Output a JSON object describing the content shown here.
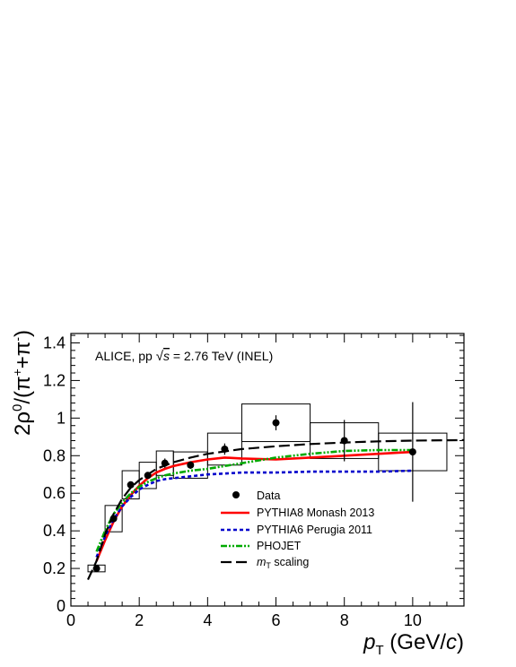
{
  "chart_data": {
    "type": "scatter",
    "annotation": {
      "prefix": "ALICE, pp ",
      "sqrt_s": "s",
      "suffix": " = 2.76 TeV (INEL)"
    },
    "xlabel": {
      "symbol": "p",
      "sub": "T",
      "unit_open": " (GeV/",
      "unit_c": "c",
      "unit_close": ")"
    },
    "ylabel": {
      "two": "2",
      "rho": "ρ",
      "zero": "0",
      "open": "/(π",
      "plus": "+",
      "mid": "+π",
      "minus": "-",
      "close": ")"
    },
    "xlim": [
      0,
      11.5
    ],
    "ylim": [
      0,
      1.45
    ],
    "x_ticks": [
      0,
      2,
      4,
      6,
      8,
      10
    ],
    "x_tick_labels": [
      "0",
      "2",
      "4",
      "6",
      "8",
      "10"
    ],
    "y_ticks": [
      0,
      0.2,
      0.4,
      0.6,
      0.8,
      1.0,
      1.2,
      1.4
    ],
    "y_tick_labels": [
      "0",
      "0.2",
      "0.4",
      "0.6",
      "0.8",
      "1",
      "1.2",
      "1.4"
    ],
    "data": {
      "name": "Data",
      "points": [
        {
          "x": 0.75,
          "y": 0.2,
          "stat": 0.01,
          "sys_lo": 0.5,
          "sys_hi": 1.0,
          "sys": 0.018
        },
        {
          "x": 1.25,
          "y": 0.465,
          "stat": 0.015,
          "sys_lo": 1.0,
          "sys_hi": 1.5,
          "sys": 0.07
        },
        {
          "x": 1.75,
          "y": 0.645,
          "stat": 0.015,
          "sys_lo": 1.5,
          "sys_hi": 2.0,
          "sys": 0.075
        },
        {
          "x": 2.25,
          "y": 0.695,
          "stat": 0.015,
          "sys_lo": 2.0,
          "sys_hi": 2.5,
          "sys": 0.07
        },
        {
          "x": 2.75,
          "y": 0.76,
          "stat": 0.025,
          "sys_lo": 2.5,
          "sys_hi": 3.0,
          "sys": 0.065
        },
        {
          "x": 3.5,
          "y": 0.75,
          "stat": 0.02,
          "sys_lo": 3.0,
          "sys_hi": 4.0,
          "sys": 0.07
        },
        {
          "x": 4.5,
          "y": 0.835,
          "stat": 0.03,
          "sys_lo": 4.0,
          "sys_hi": 5.0,
          "sys": 0.085
        },
        {
          "x": 6.0,
          "y": 0.975,
          "stat": 0.04,
          "sys_lo": 5.0,
          "sys_hi": 7.0,
          "sys": 0.1
        },
        {
          "x": 8.0,
          "y": 0.88,
          "stat": 0.11,
          "sys_lo": 7.0,
          "sys_hi": 9.0,
          "sys": 0.095
        },
        {
          "x": 10.0,
          "y": 0.82,
          "stat": 0.265,
          "sys_lo": 9.0,
          "sys_hi": 11.0,
          "sys": 0.1
        }
      ]
    },
    "series": [
      {
        "name": "PYTHIA8 Monash 2013",
        "color": "#ff0000",
        "style": "solid",
        "x": [
          0.75,
          1.0,
          1.25,
          1.5,
          1.75,
          2.0,
          2.25,
          2.5,
          2.75,
          3.0,
          3.5,
          4.0,
          4.5,
          5.0,
          6.0,
          7.0,
          8.0,
          9.0,
          10.0
        ],
        "y": [
          0.24,
          0.35,
          0.45,
          0.53,
          0.59,
          0.64,
          0.68,
          0.71,
          0.73,
          0.745,
          0.765,
          0.78,
          0.79,
          0.785,
          0.78,
          0.79,
          0.8,
          0.81,
          0.82
        ]
      },
      {
        "name": "PYTHIA6 Perugia 2011",
        "color": "#0000cc",
        "style": "dashed",
        "x": [
          0.75,
          1.0,
          1.25,
          1.5,
          1.75,
          2.0,
          2.25,
          2.5,
          2.75,
          3.0,
          3.5,
          4.0,
          4.5,
          5.0,
          6.0,
          7.0,
          8.0,
          9.0,
          10.0
        ],
        "y": [
          0.26,
          0.37,
          0.46,
          0.53,
          0.58,
          0.62,
          0.645,
          0.665,
          0.675,
          0.68,
          0.69,
          0.7,
          0.705,
          0.71,
          0.71,
          0.715,
          0.715,
          0.715,
          0.72
        ]
      },
      {
        "name": "PHOJET",
        "color": "#00aa00",
        "style": "dashdot",
        "x": [
          0.75,
          1.0,
          1.25,
          1.5,
          1.75,
          2.0,
          2.25,
          2.5,
          2.75,
          3.0,
          3.5,
          4.0,
          4.5,
          5.0,
          6.0,
          7.0,
          8.0,
          9.0,
          10.0
        ],
        "y": [
          0.29,
          0.4,
          0.49,
          0.55,
          0.6,
          0.635,
          0.66,
          0.68,
          0.695,
          0.705,
          0.72,
          0.73,
          0.745,
          0.76,
          0.79,
          0.81,
          0.825,
          0.83,
          0.83
        ]
      },
      {
        "name": "scaling",
        "name_prefix": "m",
        "name_sub": "T",
        "color": "#000000",
        "style": "longdash",
        "x": [
          0.5,
          0.75,
          1.0,
          1.25,
          1.5,
          1.75,
          2.0,
          2.5,
          3.0,
          3.5,
          4.0,
          5.0,
          6.0,
          7.0,
          8.0,
          9.0,
          10.0,
          11.0,
          11.5
        ],
        "y": [
          0.14,
          0.24,
          0.38,
          0.49,
          0.57,
          0.63,
          0.67,
          0.73,
          0.765,
          0.79,
          0.81,
          0.835,
          0.85,
          0.862,
          0.87,
          0.876,
          0.88,
          0.882,
          0.883
        ]
      }
    ],
    "legend": {
      "data_label": "Data",
      "entries": [
        "PYTHIA8 Monash 2013",
        "PYTHIA6 Perugia 2011",
        "PHOJET"
      ],
      "mt_prefix": "m",
      "mt_sub": "T",
      "mt_suffix": " scaling"
    }
  }
}
